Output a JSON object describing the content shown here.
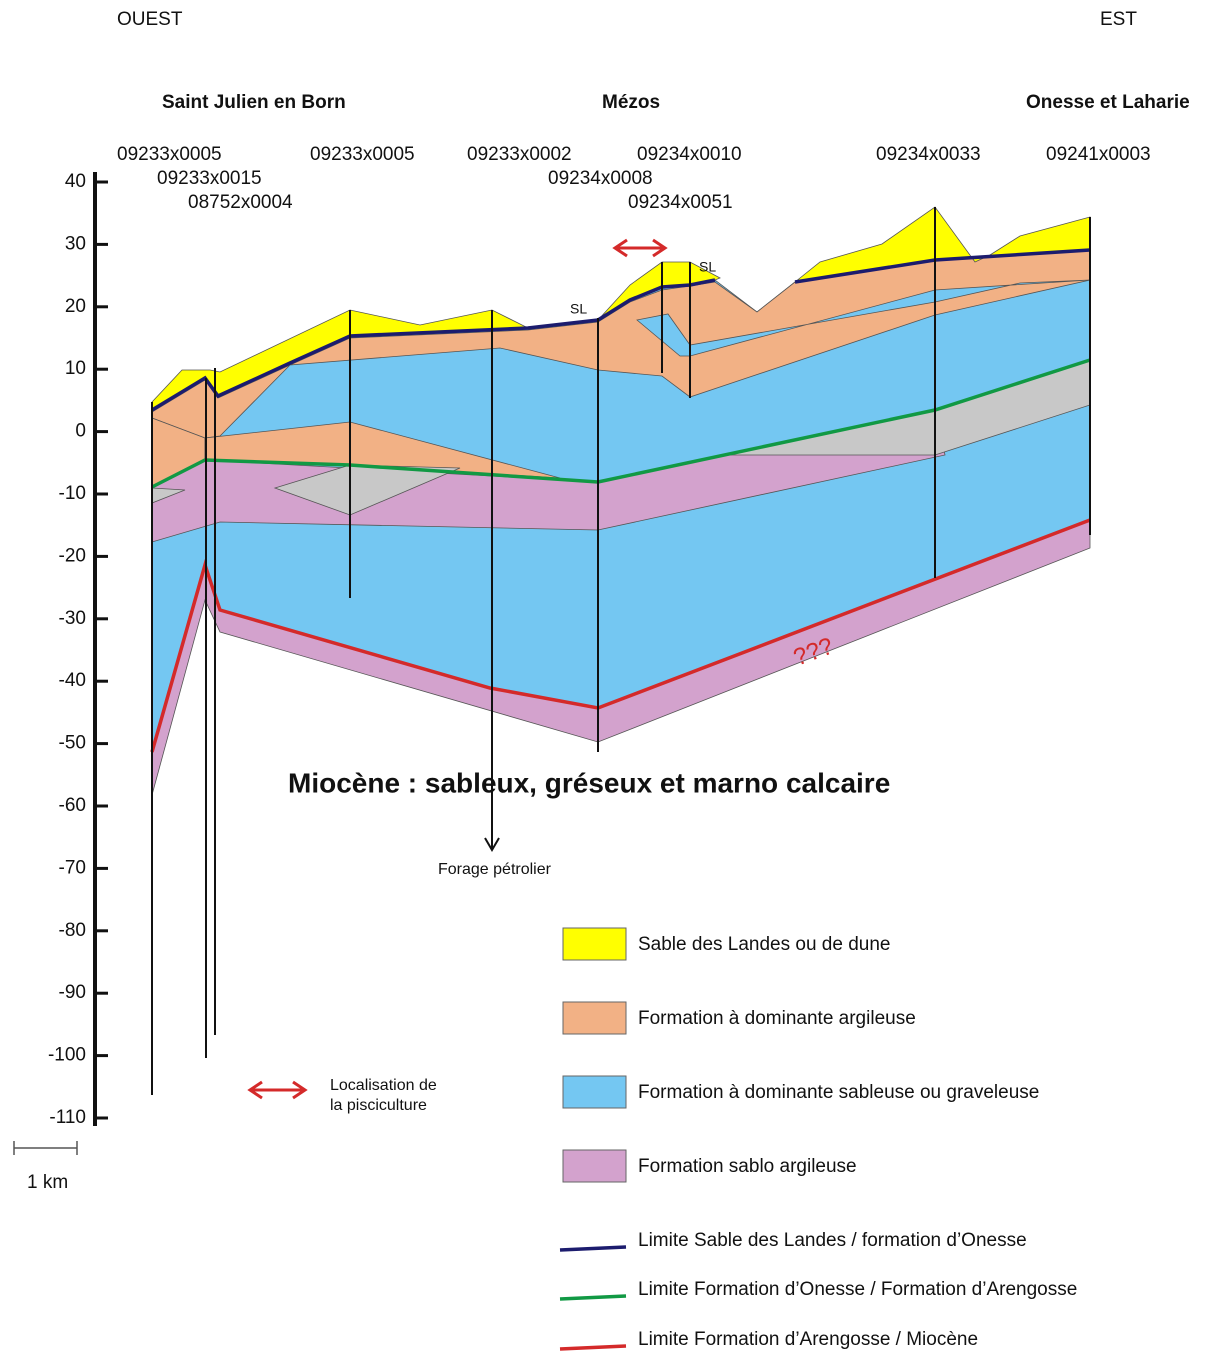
{
  "header": {
    "west": "OUEST",
    "east": "EST"
  },
  "locations": [
    "Saint Julien en Born",
    "Mézos",
    "Onesse et Laharie"
  ],
  "boreholes": [
    "09233x0005",
    "09233x0015",
    "08752x0004",
    "09233x0005",
    "09233x0002",
    "09234x0008",
    "09234x0010",
    "09234x0051",
    "09234x0033",
    "09241x0003"
  ],
  "axis": {
    "ticks": [
      40,
      30,
      20,
      10,
      0,
      -10,
      -20,
      -30,
      -40,
      -50,
      -60,
      -70,
      -80,
      -90,
      -100,
      -110
    ]
  },
  "annotations": {
    "sl": [
      "SL",
      "SL"
    ],
    "miocene": "Miocène : sableux, gréseux et marno calcaire",
    "forage": "Forage pétrolier",
    "unknown": "???",
    "pisciculture": [
      "Localisation de",
      "la pisciculture"
    ],
    "scale": "1 km"
  },
  "legend": {
    "areas": [
      "Sable des Landes ou de dune",
      "Formation à dominante argileuse",
      "Formation à dominante sableuse ou graveleuse",
      "Formation sablo argileuse"
    ],
    "lines": [
      "Limite  Sable des Landes / formation d’Onesse",
      "Limite Formation d’Onesse / Formation d’Arengosse",
      "Limite Formation d’Arengosse /  Miocène"
    ]
  }
}
